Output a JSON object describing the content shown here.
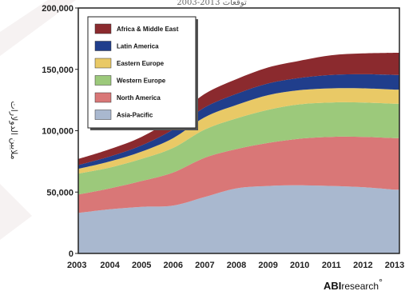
{
  "chart_data": {
    "type": "area",
    "stacked": true,
    "title": "توقعات 2003-2013",
    "ylabel": "ملايين الدولارات",
    "xlabel": "",
    "ylim": [
      0,
      200000
    ],
    "y_ticks": [
      "0",
      "50,000",
      "100,000",
      "150,000",
      "200,000"
    ],
    "y_tick_values": [
      0,
      50000,
      100000,
      150000,
      200000
    ],
    "categories": [
      "2003",
      "2004",
      "2005",
      "2006",
      "2007",
      "2008",
      "2009",
      "2010",
      "2011",
      "2012",
      "2013"
    ],
    "grid": false,
    "legend_position": "top-left",
    "series": [
      {
        "name": "Asia-Pacific",
        "color": "#a9b8cf",
        "values": [
          33000,
          36000,
          38000,
          39000,
          46000,
          53000,
          55000,
          55500,
          55000,
          54000,
          52000
        ]
      },
      {
        "name": "North America",
        "color": "#d97777",
        "values": [
          15000,
          17000,
          21000,
          27000,
          32000,
          32000,
          35000,
          38000,
          40000,
          41000,
          42000
        ]
      },
      {
        "name": "Western Europe",
        "color": "#9cc97b",
        "values": [
          17000,
          17000,
          18000,
          20000,
          23000,
          25000,
          27000,
          28000,
          28000,
          28000,
          28000
        ]
      },
      {
        "name": "Eastern Europe",
        "color": "#e9c966",
        "values": [
          4000,
          5000,
          6000,
          8000,
          10000,
          11000,
          12000,
          11500,
          11500,
          11500,
          11500
        ]
      },
      {
        "name": "Latin America",
        "color": "#203e8c",
        "values": [
          3000,
          4000,
          5000,
          7000,
          8000,
          9000,
          9500,
          10000,
          11000,
          11500,
          12000
        ]
      },
      {
        "name": "Africa & Middle East",
        "color": "#8b2a2e",
        "values": [
          5000,
          6000,
          7000,
          9000,
          11000,
          12000,
          13000,
          14000,
          16000,
          17000,
          18000
        ]
      }
    ],
    "caption_prefix": "توقعات",
    "caption_years": "2003-2013"
  },
  "branding": {
    "logo_bold": "ABI",
    "logo_light": "research",
    "logo_mark": "°"
  }
}
